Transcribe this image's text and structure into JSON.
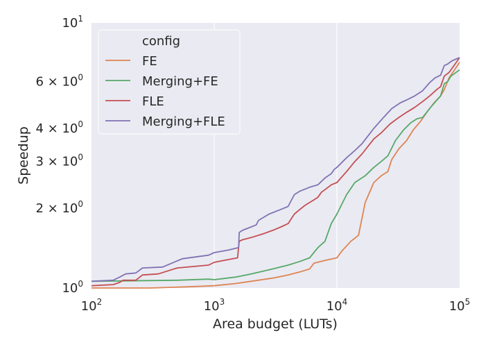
{
  "chart_data": {
    "type": "line",
    "xscale": "log",
    "yscale": "log",
    "xlabel": "Area budget (LUTs)",
    "ylabel": "Speedup",
    "xlim": [
      100,
      100000
    ],
    "ylim": [
      1,
      10
    ],
    "grid": true,
    "legend": {
      "title": "config",
      "placement": "top-left"
    },
    "x_ticks": [
      {
        "value": 100,
        "base": "10",
        "exp": "2"
      },
      {
        "value": 1000,
        "base": "10",
        "exp": "3"
      },
      {
        "value": 10000,
        "base": "10",
        "exp": "4"
      },
      {
        "value": 100000,
        "base": "10",
        "exp": "5"
      }
    ],
    "y_ticks": [
      {
        "value": 1,
        "base": "10",
        "exp": "0",
        "mant": ""
      },
      {
        "value": 2,
        "base": "10",
        "exp": "0",
        "mant": "2 × "
      },
      {
        "value": 3,
        "base": "10",
        "exp": "0",
        "mant": "3 × "
      },
      {
        "value": 4,
        "base": "10",
        "exp": "0",
        "mant": "4 × "
      },
      {
        "value": 6,
        "base": "10",
        "exp": "0",
        "mant": "6 × "
      },
      {
        "value": 10,
        "base": "10",
        "exp": "1",
        "mant": ""
      }
    ],
    "series": [
      {
        "name": "FE",
        "color": "#dd8452",
        "points": [
          [
            100,
            1.0
          ],
          [
            300,
            1.0
          ],
          [
            600,
            1.01
          ],
          [
            1000,
            1.02
          ],
          [
            1500,
            1.04
          ],
          [
            2000,
            1.06
          ],
          [
            3000,
            1.09
          ],
          [
            4000,
            1.12
          ],
          [
            5000,
            1.15
          ],
          [
            6000,
            1.18
          ],
          [
            6500,
            1.24
          ],
          [
            8000,
            1.27
          ],
          [
            10000,
            1.3
          ],
          [
            11000,
            1.38
          ],
          [
            13000,
            1.5
          ],
          [
            15000,
            1.58
          ],
          [
            17000,
            2.1
          ],
          [
            20000,
            2.5
          ],
          [
            23000,
            2.65
          ],
          [
            26000,
            2.75
          ],
          [
            28000,
            3.05
          ],
          [
            32000,
            3.35
          ],
          [
            37000,
            3.6
          ],
          [
            42000,
            3.95
          ],
          [
            48000,
            4.25
          ],
          [
            55000,
            4.65
          ],
          [
            62000,
            5.0
          ],
          [
            70000,
            5.3
          ],
          [
            75000,
            5.6
          ],
          [
            82000,
            6.2
          ],
          [
            90000,
            6.6
          ],
          [
            100000,
            7.1
          ]
        ]
      },
      {
        "name": "Merging+FE",
        "color": "#55a868",
        "points": [
          [
            100,
            1.06
          ],
          [
            500,
            1.07
          ],
          [
            900,
            1.08
          ],
          [
            1000,
            1.075
          ],
          [
            1500,
            1.1
          ],
          [
            2000,
            1.13
          ],
          [
            3000,
            1.18
          ],
          [
            4000,
            1.22
          ],
          [
            5000,
            1.26
          ],
          [
            6000,
            1.3
          ],
          [
            7000,
            1.42
          ],
          [
            8000,
            1.5
          ],
          [
            9000,
            1.75
          ],
          [
            10000,
            1.9
          ],
          [
            12000,
            2.25
          ],
          [
            14000,
            2.5
          ],
          [
            17000,
            2.65
          ],
          [
            20000,
            2.85
          ],
          [
            23000,
            3.0
          ],
          [
            26000,
            3.15
          ],
          [
            30000,
            3.6
          ],
          [
            35000,
            3.95
          ],
          [
            40000,
            4.2
          ],
          [
            45000,
            4.35
          ],
          [
            50000,
            4.4
          ],
          [
            58000,
            4.8
          ],
          [
            65000,
            5.1
          ],
          [
            70000,
            5.3
          ],
          [
            75000,
            5.9
          ],
          [
            80000,
            6.0
          ],
          [
            85000,
            6.3
          ],
          [
            100000,
            6.65
          ]
        ]
      },
      {
        "name": "FLE",
        "color": "#c44e52",
        "points": [
          [
            100,
            1.02
          ],
          [
            150,
            1.03
          ],
          [
            170,
            1.05
          ],
          [
            180,
            1.07
          ],
          [
            230,
            1.07
          ],
          [
            260,
            1.12
          ],
          [
            350,
            1.13
          ],
          [
            500,
            1.19
          ],
          [
            900,
            1.22
          ],
          [
            1000,
            1.25
          ],
          [
            1200,
            1.27
          ],
          [
            1550,
            1.3
          ],
          [
            1600,
            1.5
          ],
          [
            1700,
            1.52
          ],
          [
            2000,
            1.55
          ],
          [
            2500,
            1.6
          ],
          [
            3000,
            1.65
          ],
          [
            3500,
            1.7
          ],
          [
            4000,
            1.75
          ],
          [
            4500,
            1.9
          ],
          [
            5000,
            1.98
          ],
          [
            5500,
            2.05
          ],
          [
            6500,
            2.15
          ],
          [
            7000,
            2.2
          ],
          [
            7500,
            2.3
          ],
          [
            8000,
            2.35
          ],
          [
            9000,
            2.45
          ],
          [
            10000,
            2.5
          ],
          [
            12000,
            2.75
          ],
          [
            14000,
            3.0
          ],
          [
            16000,
            3.2
          ],
          [
            20000,
            3.65
          ],
          [
            23000,
            3.85
          ],
          [
            27000,
            4.15
          ],
          [
            32000,
            4.4
          ],
          [
            37000,
            4.6
          ],
          [
            43000,
            4.8
          ],
          [
            50000,
            5.05
          ],
          [
            57000,
            5.3
          ],
          [
            65000,
            5.6
          ],
          [
            70000,
            5.75
          ],
          [
            75000,
            6.3
          ],
          [
            82000,
            6.5
          ],
          [
            90000,
            6.9
          ],
          [
            100000,
            7.4
          ]
        ]
      },
      {
        "name": "Merging+FLE",
        "color": "#8172b3",
        "points": [
          [
            100,
            1.06
          ],
          [
            150,
            1.07
          ],
          [
            170,
            1.1
          ],
          [
            190,
            1.13
          ],
          [
            230,
            1.14
          ],
          [
            260,
            1.19
          ],
          [
            380,
            1.2
          ],
          [
            550,
            1.29
          ],
          [
            900,
            1.33
          ],
          [
            1000,
            1.36
          ],
          [
            1300,
            1.39
          ],
          [
            1580,
            1.42
          ],
          [
            1600,
            1.62
          ],
          [
            1700,
            1.65
          ],
          [
            2000,
            1.7
          ],
          [
            2200,
            1.73
          ],
          [
            2300,
            1.8
          ],
          [
            2800,
            1.9
          ],
          [
            3500,
            1.98
          ],
          [
            4000,
            2.03
          ],
          [
            4500,
            2.25
          ],
          [
            5000,
            2.32
          ],
          [
            6000,
            2.4
          ],
          [
            7000,
            2.45
          ],
          [
            8000,
            2.6
          ],
          [
            9000,
            2.7
          ],
          [
            9500,
            2.8
          ],
          [
            10000,
            2.85
          ],
          [
            12000,
            3.1
          ],
          [
            14000,
            3.3
          ],
          [
            16000,
            3.5
          ],
          [
            20000,
            4.0
          ],
          [
            24000,
            4.4
          ],
          [
            28000,
            4.75
          ],
          [
            33000,
            5.0
          ],
          [
            38000,
            5.15
          ],
          [
            43000,
            5.3
          ],
          [
            50000,
            5.55
          ],
          [
            57000,
            5.95
          ],
          [
            63000,
            6.2
          ],
          [
            70000,
            6.35
          ],
          [
            75000,
            6.9
          ],
          [
            80000,
            7.0
          ],
          [
            87000,
            7.2
          ],
          [
            100000,
            7.4
          ]
        ]
      }
    ]
  }
}
